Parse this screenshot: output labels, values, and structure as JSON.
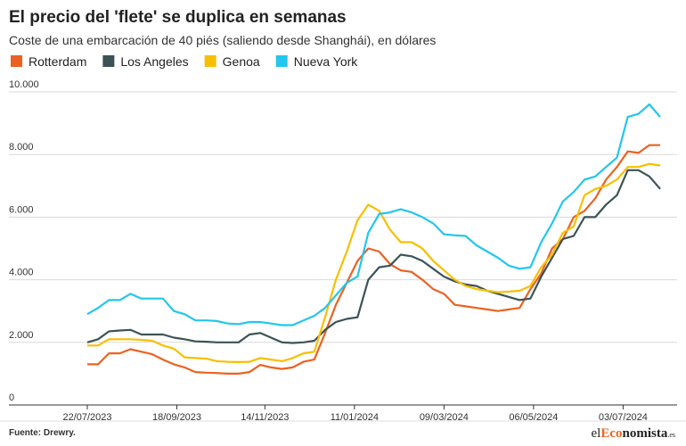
{
  "chart_data": {
    "type": "line",
    "title": "El precio del 'flete' se duplica en semanas",
    "subtitle": "Coste de una embarcación de 40 piés (saliendo desde Shanghái), en dólares",
    "source": "Fuente: Drewry.",
    "logo": [
      "el",
      "Eco",
      "nomista",
      ".es"
    ],
    "grid": true,
    "legend": "top-left",
    "x": [
      "2023-07-22",
      "2023-07-29",
      "2023-08-05",
      "2023-08-12",
      "2023-08-19",
      "2023-08-26",
      "2023-09-02",
      "2023-09-09",
      "2023-09-16",
      "2023-09-23",
      "2023-09-30",
      "2023-10-07",
      "2023-10-14",
      "2023-10-21",
      "2023-10-28",
      "2023-11-04",
      "2023-11-11",
      "2023-11-18",
      "2023-11-25",
      "2023-12-02",
      "2023-12-09",
      "2023-12-16",
      "2023-12-23",
      "2023-12-30",
      "2024-01-06",
      "2024-01-13",
      "2024-01-20",
      "2024-01-27",
      "2024-02-03",
      "2024-02-10",
      "2024-02-17",
      "2024-02-24",
      "2024-03-02",
      "2024-03-09",
      "2024-03-16",
      "2024-03-23",
      "2024-03-30",
      "2024-04-06",
      "2024-04-13",
      "2024-04-20",
      "2024-04-27",
      "2024-05-04",
      "2024-05-11",
      "2024-05-18",
      "2024-05-25",
      "2024-06-01",
      "2024-06-08",
      "2024-06-15",
      "2024-06-22",
      "2024-06-29",
      "2024-07-06",
      "2024-07-13",
      "2024-07-20",
      "2024-07-27"
    ],
    "xlim": [
      "2023-07-22",
      "2024-07-27"
    ],
    "xticks": [
      {
        "value": "2023-07-22",
        "label": "22/07/2023"
      },
      {
        "value": "2023-09-18",
        "label": "18/09/2023"
      },
      {
        "value": "2023-11-14",
        "label": "14/11/2023"
      },
      {
        "value": "2024-01-11",
        "label": "11/01/2024"
      },
      {
        "value": "2024-03-09",
        "label": "09/03/2024"
      },
      {
        "value": "2024-05-06",
        "label": "06/05/2024"
      },
      {
        "value": "2024-07-03",
        "label": "03/07/2024"
      }
    ],
    "ylim": [
      0,
      10000
    ],
    "yticks": [
      0,
      {
        "value": 2000,
        "label": "2.000"
      },
      {
        "value": 4000,
        "label": "4.000"
      },
      {
        "value": 6000,
        "label": "6.000"
      },
      {
        "value": 8000,
        "label": "8.000"
      },
      {
        "value": 10000,
        "label": "10.000"
      }
    ],
    "series": [
      {
        "name": "Rotterdam",
        "color": "#ec6220",
        "values": [
          1300,
          1300,
          1650,
          1650,
          1780,
          1700,
          1620,
          1450,
          1300,
          1200,
          1050,
          1030,
          1020,
          1000,
          1000,
          1050,
          1280,
          1200,
          1150,
          1200,
          1380,
          1450,
          2300,
          3200,
          3900,
          4600,
          5000,
          4900,
          4500,
          4300,
          4250,
          4000,
          3700,
          3550,
          3200,
          3150,
          3100,
          3050,
          3000,
          3050,
          3100,
          3700,
          4200,
          5000,
          5300,
          6000,
          6200,
          6600,
          7200,
          7600,
          8100,
          8050,
          8300,
          8300
        ]
      },
      {
        "name": "Los Angeles",
        "color": "#3c5356",
        "values": [
          2000,
          2100,
          2350,
          2380,
          2400,
          2250,
          2250,
          2250,
          2150,
          2100,
          2030,
          2020,
          2000,
          2000,
          2000,
          2250,
          2300,
          2150,
          2000,
          1980,
          2000,
          2050,
          2400,
          2650,
          2750,
          2800,
          4000,
          4400,
          4450,
          4800,
          4750,
          4600,
          4350,
          4100,
          3950,
          3850,
          3800,
          3650,
          3550,
          3450,
          3350,
          3400,
          4100,
          4700,
          5300,
          5400,
          6000,
          6000,
          6400,
          6700,
          7500,
          7500,
          7300,
          6900
        ]
      },
      {
        "name": "Genoa",
        "color": "#f8bf00",
        "values": [
          1900,
          1900,
          2100,
          2100,
          2100,
          2080,
          2050,
          1900,
          1800,
          1520,
          1500,
          1480,
          1400,
          1380,
          1370,
          1380,
          1500,
          1450,
          1400,
          1500,
          1650,
          1700,
          2800,
          4000,
          4900,
          5900,
          6400,
          6200,
          5600,
          5200,
          5200,
          5000,
          4600,
          4300,
          4000,
          3800,
          3700,
          3650,
          3600,
          3620,
          3650,
          3800,
          4400,
          4800,
          5500,
          5700,
          6700,
          6900,
          7000,
          7200,
          7600,
          7600,
          7700,
          7650
        ]
      },
      {
        "name": "Nueva York",
        "color": "#22c6ef",
        "values": [
          2900,
          3100,
          3350,
          3350,
          3550,
          3400,
          3400,
          3400,
          3000,
          2900,
          2700,
          2700,
          2680,
          2600,
          2580,
          2650,
          2650,
          2600,
          2550,
          2550,
          2700,
          2850,
          3100,
          3500,
          3900,
          4100,
          5500,
          6100,
          6150,
          6250,
          6150,
          6000,
          5800,
          5450,
          5420,
          5400,
          5100,
          4900,
          4700,
          4450,
          4350,
          4400,
          5200,
          5800,
          6500,
          6800,
          7200,
          7300,
          7600,
          7900,
          9200,
          9300,
          9600,
          9200
        ]
      }
    ]
  }
}
